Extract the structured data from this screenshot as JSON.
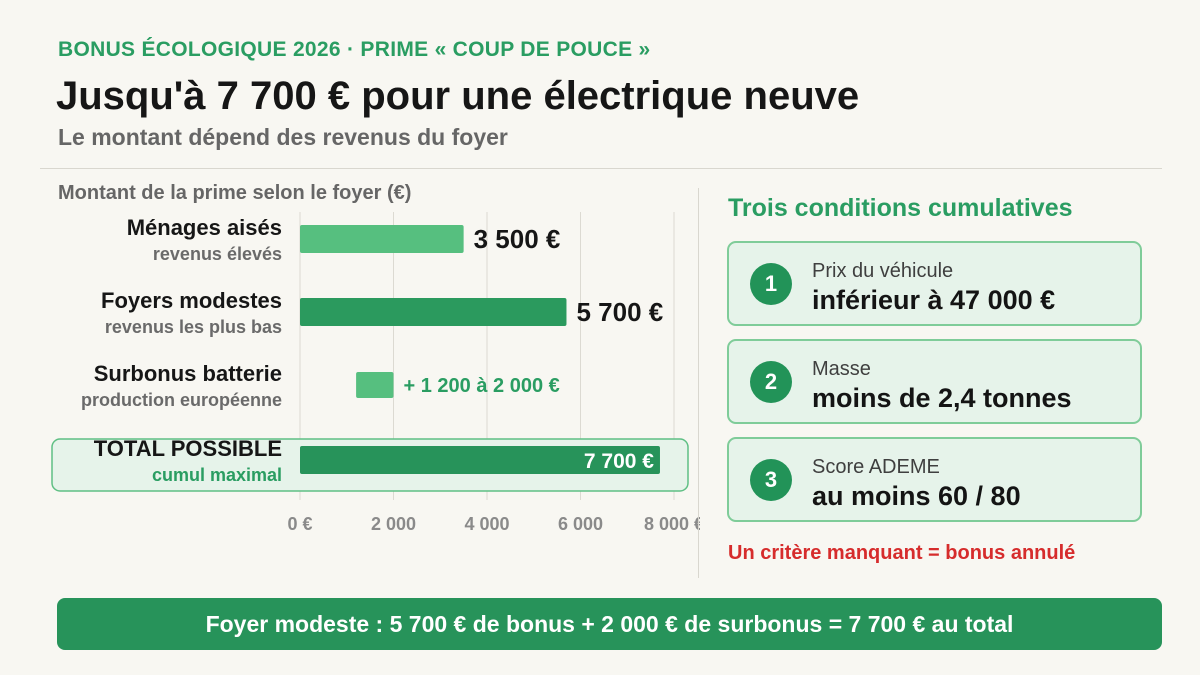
{
  "header": {
    "kicker": "BONUS ÉCOLOGIQUE 2026 · PRIME « COUP DE POUCE »",
    "title": "Jusqu'à 7 700 € pour une électrique neuve",
    "subtitle": "Le montant dépend des revenus du foyer"
  },
  "chart_data": {
    "type": "bar",
    "orientation": "horizontal",
    "title": "Montant de la prime selon le foyer (€)",
    "xlim": [
      0,
      8000
    ],
    "xticks": [
      0,
      2000,
      4000,
      6000,
      8000
    ],
    "xtick_labels": [
      "0 €",
      "2 000",
      "4 000",
      "6 000",
      "8 000 €"
    ],
    "grid": true,
    "categories": [
      {
        "label": "Ménages aisés",
        "sublabel": "revenus élevés",
        "start": 0,
        "value": 3500,
        "value_label": "3 500 €",
        "color": "#56bf7f"
      },
      {
        "label": "Foyers modestes",
        "sublabel": "revenus les plus bas",
        "start": 0,
        "value": 5700,
        "value_label": "5 700 €",
        "color": "#2b9a5e"
      },
      {
        "label": "Surbonus batterie",
        "sublabel": "production européenne",
        "start": 1200,
        "value": 2000,
        "value_label": "+ 1 200 à 2 000 €",
        "color": "#56bf7f"
      },
      {
        "label": "TOTAL POSSIBLE",
        "sublabel": "cumul maximal",
        "start": 0,
        "value": 7700,
        "value_label": "7 700 €",
        "color": "#27935a",
        "highlight": true
      }
    ]
  },
  "conditions": {
    "title": "Trois conditions cumulatives",
    "items": [
      {
        "number": "1",
        "label": "Prix du véhicule",
        "value": "inférieur à 47 000 €"
      },
      {
        "number": "2",
        "label": "Masse",
        "value": "moins de 2,4 tonnes"
      },
      {
        "number": "3",
        "label": "Score ADEME",
        "value": "au moins 60 / 80"
      }
    ],
    "warning": "Un critère manquant = bonus annulé"
  },
  "footer": {
    "text": "Foyer modeste : 5 700 € de bonus + 2 000 € de surbonus = 7 700 € au total"
  }
}
